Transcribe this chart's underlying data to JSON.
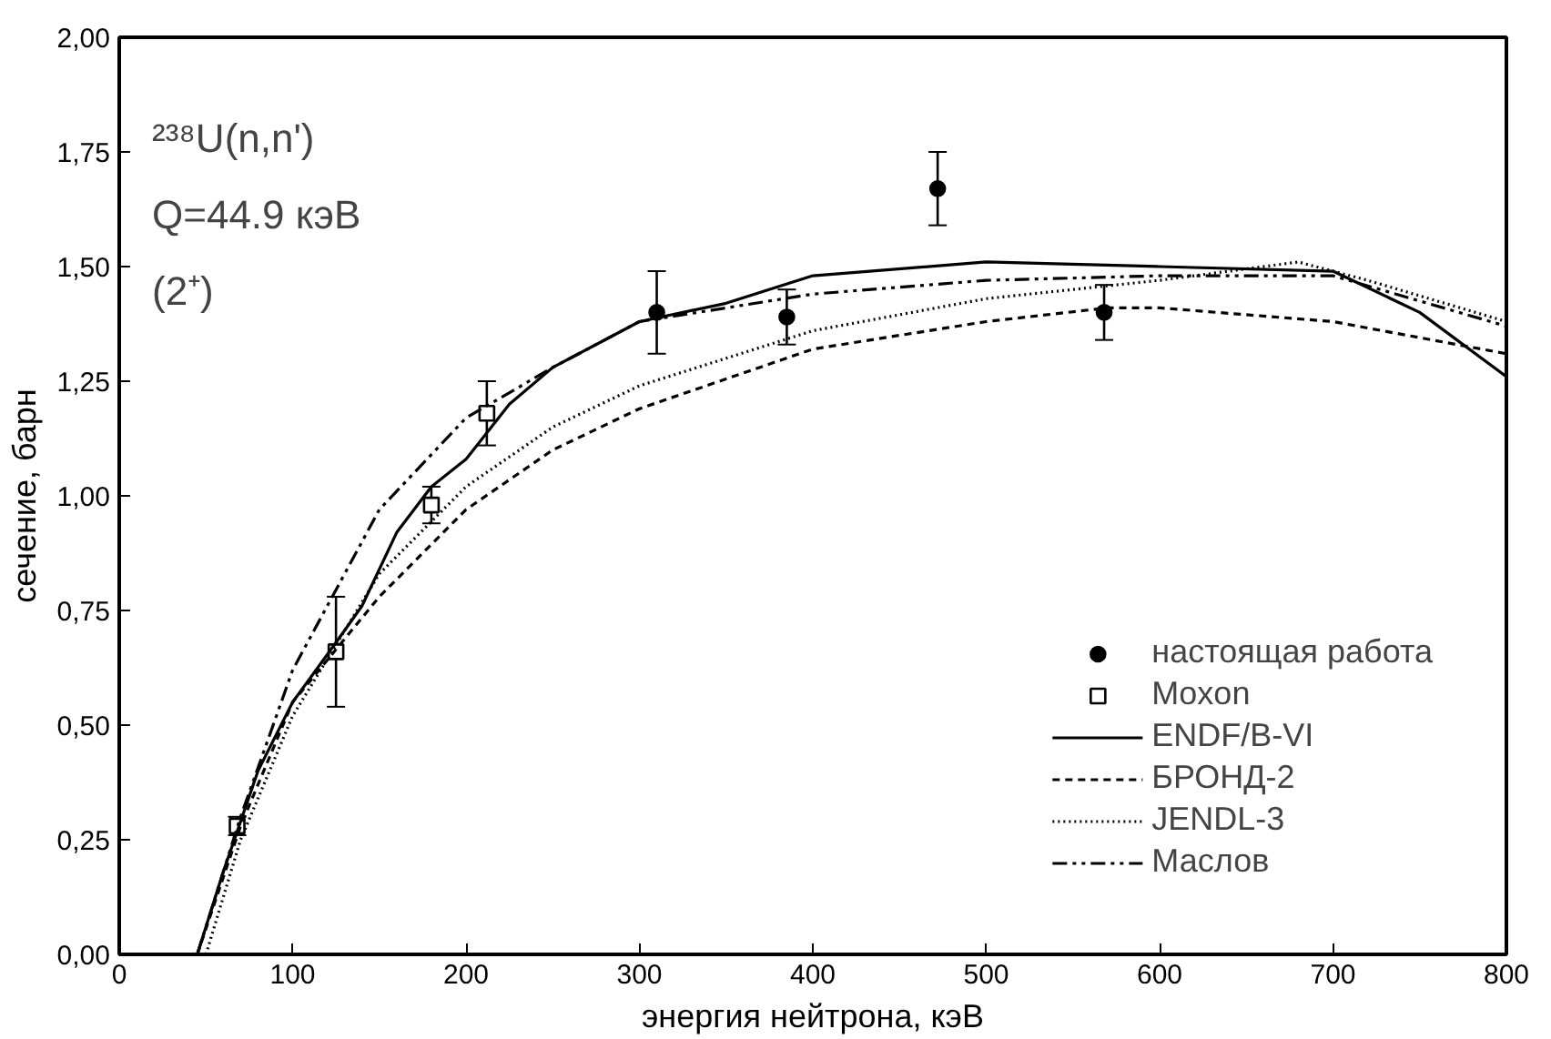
{
  "chart_data": {
    "type": "line",
    "xlabel": "энергия нейтрона, кэВ",
    "ylabel": "сечение, барн",
    "annotations": [
      "²³⁸U(n,n')",
      "Q=44.9 кэВ",
      "(2⁺)"
    ],
    "xlim": [
      0,
      800
    ],
    "xticks": [
      0,
      100,
      200,
      300,
      400,
      500,
      600,
      700,
      800
    ],
    "ylim": [
      0,
      2
    ],
    "yticks": [
      {
        "value": 0,
        "label": "0,00"
      },
      {
        "value": 0.25,
        "label": "0,25"
      },
      {
        "value": 0.5,
        "label": "0,50"
      },
      {
        "value": 0.75,
        "label": "0,75"
      },
      {
        "value": 1,
        "label": "1,00"
      },
      {
        "value": 1.25,
        "label": "1,25"
      },
      {
        "value": 1.5,
        "label": "1,50"
      },
      {
        "value": 1.75,
        "label": "1,75"
      },
      {
        "value": 2,
        "label": "2,00"
      }
    ],
    "grid": false,
    "legend": "bottom right",
    "series": [
      {
        "name": "настоящая работа",
        "type": "scatter",
        "marker": "circle",
        "color": "#000000",
        "x": [
          310,
          385,
          472,
          568
        ],
        "values": [
          1.4,
          1.39,
          1.67,
          1.4
        ],
        "errors": [
          0.09,
          0.06,
          0.08,
          0.06
        ]
      },
      {
        "name": "Moxon",
        "type": "scatter",
        "marker": "square",
        "color": "#000000",
        "x": [
          68,
          125,
          180,
          212
        ],
        "values": [
          0.28,
          0.66,
          0.98,
          1.18
        ],
        "errors": [
          0.02,
          0.12,
          0.04,
          0.07
        ]
      },
      {
        "name": "ENDF/B-VI",
        "line_style": "solid",
        "color": "#000000",
        "x": [
          45,
          60,
          80,
          100,
          125,
          140,
          160,
          180,
          200,
          225,
          250,
          300,
          350,
          400,
          500,
          600,
          700,
          750,
          800
        ],
        "values": [
          0,
          0.18,
          0.4,
          0.55,
          0.68,
          0.76,
          0.92,
          1.02,
          1.08,
          1.2,
          1.28,
          1.38,
          1.42,
          1.48,
          1.51,
          1.5,
          1.49,
          1.4,
          1.26
        ]
      },
      {
        "name": "БРОНД-2",
        "line_style": "dashed",
        "color": "#000000",
        "x": [
          45,
          70,
          100,
          150,
          200,
          250,
          300,
          400,
          500,
          570,
          600,
          700,
          800
        ],
        "values": [
          0,
          0.28,
          0.55,
          0.78,
          0.97,
          1.1,
          1.19,
          1.32,
          1.38,
          1.41,
          1.41,
          1.38,
          1.31
        ]
      },
      {
        "name": "JENDL-3",
        "line_style": "dotted",
        "color": "#000000",
        "x": [
          50,
          70,
          100,
          150,
          200,
          250,
          300,
          400,
          500,
          600,
          680,
          720,
          800
        ],
        "values": [
          0,
          0.25,
          0.52,
          0.83,
          1.02,
          1.15,
          1.24,
          1.36,
          1.43,
          1.47,
          1.51,
          1.47,
          1.38
        ]
      },
      {
        "name": "Маслов",
        "line_style": "dashdotdot",
        "color": "#000000",
        "x": [
          45,
          70,
          100,
          150,
          200,
          250,
          300,
          400,
          500,
          600,
          700,
          800
        ],
        "values": [
          0,
          0.3,
          0.62,
          0.97,
          1.17,
          1.28,
          1.38,
          1.44,
          1.47,
          1.48,
          1.48,
          1.37
        ]
      }
    ]
  }
}
